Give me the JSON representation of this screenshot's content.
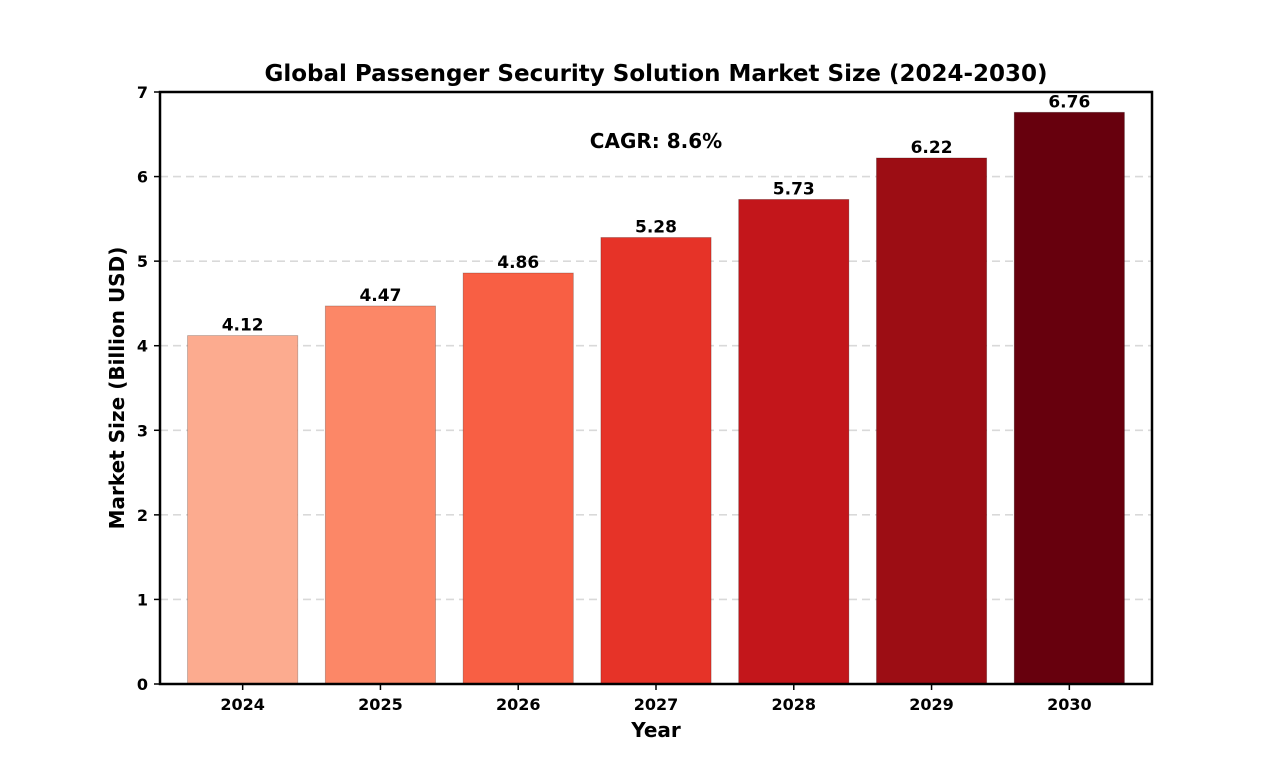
{
  "chart_data": {
    "type": "bar",
    "title": "Global Passenger Security Solution Market Size (2024-2030)",
    "xlabel": "Year",
    "ylabel": "Market Size (Billion USD)",
    "categories": [
      "2024",
      "2025",
      "2026",
      "2027",
      "2028",
      "2029",
      "2030"
    ],
    "values": [
      4.12,
      4.47,
      4.86,
      5.28,
      5.73,
      6.22,
      6.76
    ],
    "value_labels": [
      "4.12",
      "4.47",
      "4.86",
      "5.28",
      "5.73",
      "6.22",
      "6.76"
    ],
    "colors": [
      "#fcab8f",
      "#fc8767",
      "#f85f44",
      "#e63328",
      "#c3161b",
      "#9c0d14",
      "#67000d"
    ],
    "ylim": [
      0,
      7
    ],
    "yticks": [
      "0",
      "1",
      "2",
      "3",
      "4",
      "5",
      "6",
      "7"
    ],
    "grid": "horizontal dashed",
    "annotation": "CAGR: 8.6%"
  }
}
